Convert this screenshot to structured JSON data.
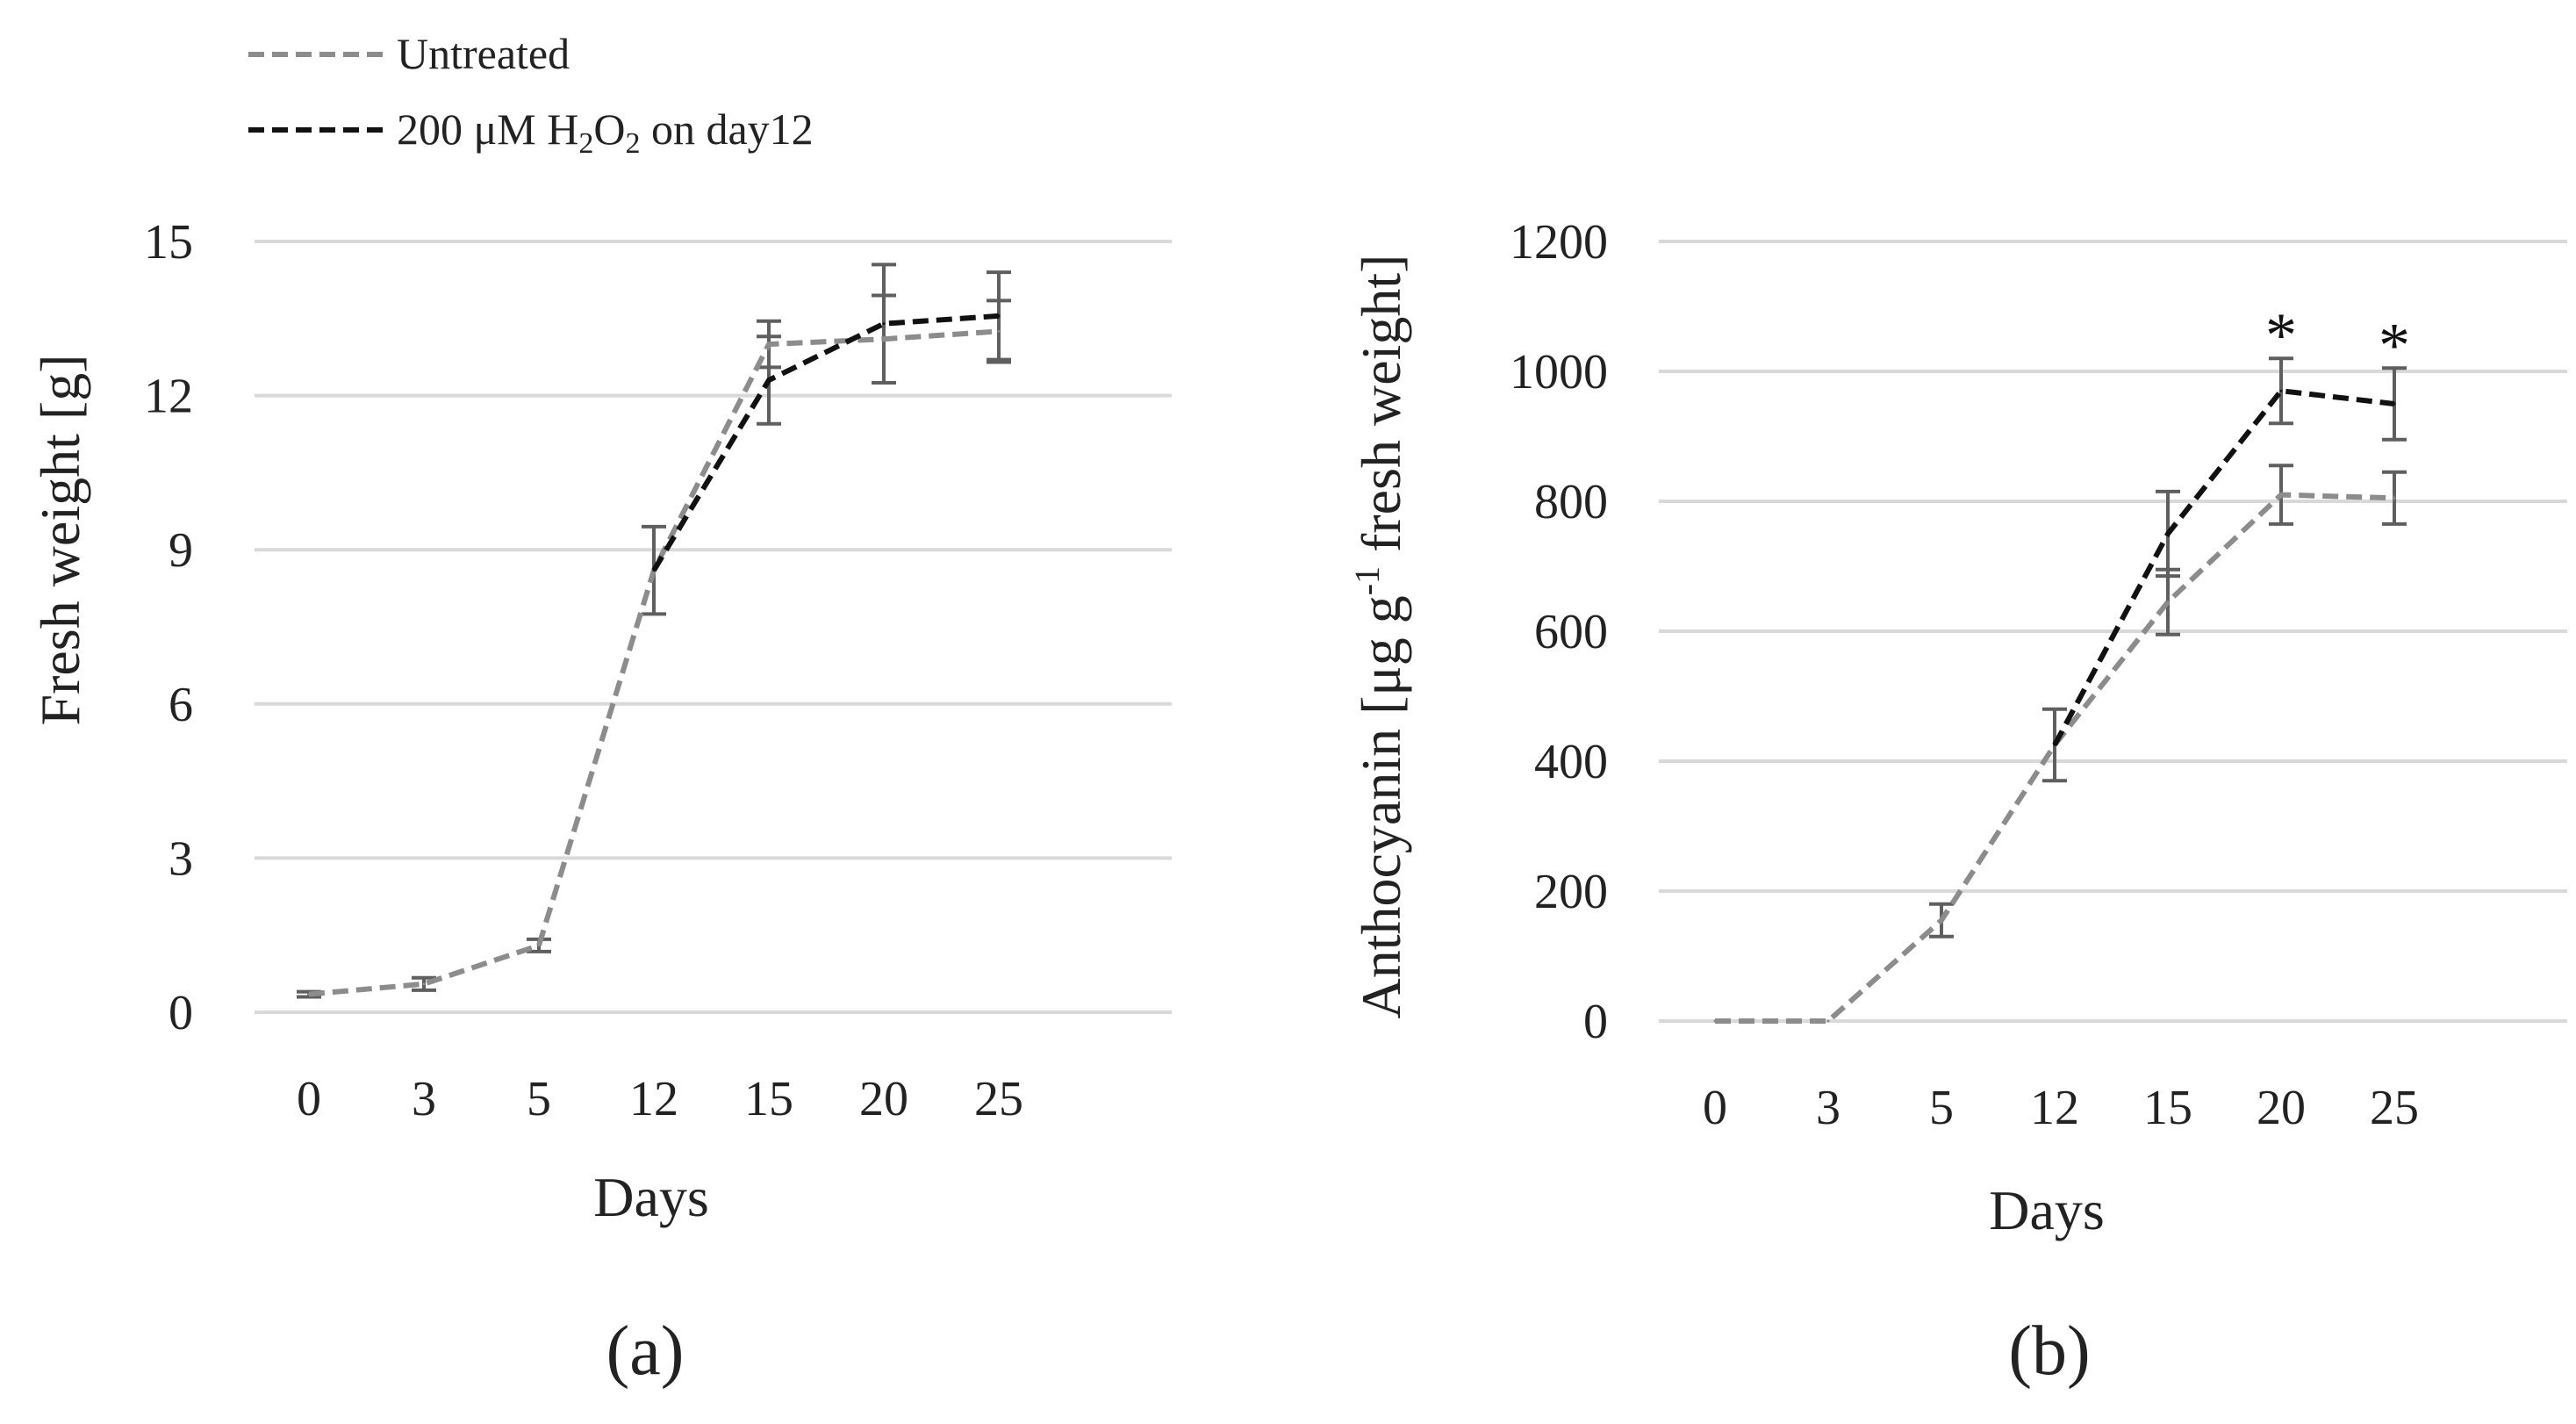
{
  "legend": {
    "untreated": {
      "label": "Untreated",
      "color": "#8c8c8c"
    },
    "treated": {
      "pre": "200 μM H",
      "sub1": "2",
      "mid": "O",
      "sub2": "2",
      "post": " on day12",
      "color": "#111111"
    }
  },
  "chart_data": [
    {
      "type": "line",
      "panel_label": "(a)",
      "xlabel": "Days",
      "ylabel": "Fresh weight [g]",
      "categories": [
        "0",
        "3",
        "5",
        "12",
        "15",
        "20",
        "25"
      ],
      "ylim": [
        0,
        15
      ],
      "yticks": [
        "0",
        "3",
        "6",
        "9",
        "12",
        "15"
      ],
      "grid": true,
      "series": [
        {
          "name": "Untreated",
          "color": "#8c8c8c",
          "values": [
            0.35,
            0.55,
            1.3,
            8.6,
            13.0,
            13.1,
            13.25
          ],
          "errors": [
            0.05,
            0.12,
            0.12,
            0.85,
            0.45,
            0.85,
            0.6
          ]
        },
        {
          "name": "200 μM H2O2 on day12",
          "color": "#111111",
          "values": [
            null,
            null,
            null,
            8.6,
            12.3,
            13.4,
            13.55
          ],
          "errors": [
            null,
            null,
            null,
            null,
            0.85,
            1.15,
            0.85
          ]
        }
      ],
      "annotations": []
    },
    {
      "type": "line",
      "panel_label": "(b)",
      "xlabel": "Days",
      "ylabel_pre": "Anthocyanin [μg g",
      "ylabel_sup": "-1",
      "ylabel_post": " fresh weight]",
      "categories": [
        "0",
        "3",
        "5",
        "12",
        "15",
        "20",
        "25"
      ],
      "ylim": [
        0,
        1200
      ],
      "yticks": [
        "0",
        "200",
        "400",
        "600",
        "800",
        "1000",
        "1200"
      ],
      "grid": true,
      "series": [
        {
          "name": "Untreated",
          "color": "#8c8c8c",
          "values": [
            0,
            0,
            155,
            425,
            645,
            810,
            805
          ],
          "errors": [
            null,
            null,
            25,
            55,
            50,
            45,
            40
          ]
        },
        {
          "name": "200 μM H2O2 on day12",
          "color": "#111111",
          "values": [
            null,
            null,
            null,
            425,
            750,
            970,
            950
          ],
          "errors": [
            null,
            null,
            null,
            null,
            65,
            50,
            55
          ]
        }
      ],
      "annotations": [
        {
          "text": "*",
          "category": "20"
        },
        {
          "text": "*",
          "category": "25"
        }
      ]
    }
  ]
}
